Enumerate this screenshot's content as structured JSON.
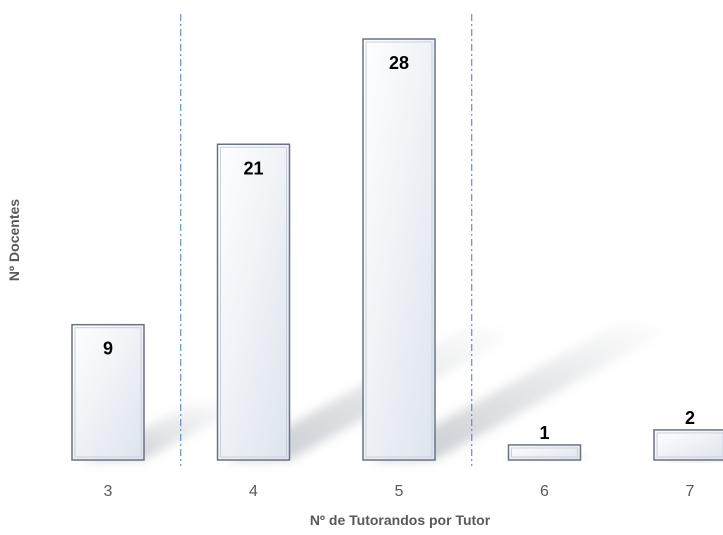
{
  "chart_data": {
    "type": "bar",
    "categories": [
      "3",
      "4",
      "5",
      "6",
      "7"
    ],
    "values": [
      9,
      21,
      28,
      1,
      2
    ],
    "xlabel": "Nº de Tutorandos por Tutor",
    "ylabel": "Nº Docentes",
    "ylim": [
      0,
      28
    ],
    "grid": false,
    "legend": "none",
    "colors": {
      "bar_top": "#ffffff",
      "bar_bottom": "#dde4ee",
      "bar_edge": "#6b7380",
      "separator": "#4a7ab8",
      "text": "#595959"
    }
  }
}
